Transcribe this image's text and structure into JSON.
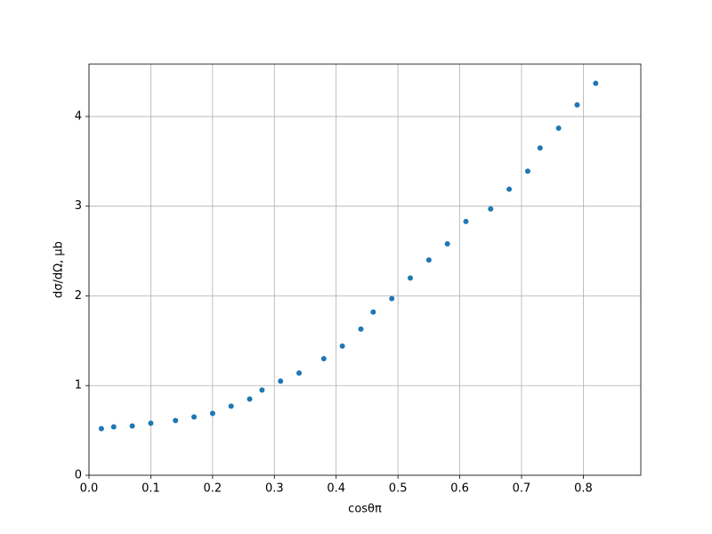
{
  "chart_data": {
    "type": "scatter",
    "xlabel": "cosθπ",
    "ylabel": "dσ/dΩ, μb",
    "x": [
      0.02,
      0.04,
      0.07,
      0.1,
      0.14,
      0.17,
      0.2,
      0.23,
      0.26,
      0.28,
      0.31,
      0.34,
      0.38,
      0.41,
      0.44,
      0.46,
      0.49,
      0.52,
      0.55,
      0.58,
      0.61,
      0.65,
      0.68,
      0.71,
      0.73,
      0.76,
      0.79,
      0.82
    ],
    "series": [
      {
        "color": "#1f77b4",
        "values": [
          0.52,
          0.54,
          0.55,
          0.58,
          0.61,
          0.65,
          0.69,
          0.77,
          0.85,
          0.95,
          1.05,
          1.14,
          1.3,
          1.44,
          1.63,
          1.82,
          1.97,
          2.2,
          2.4,
          2.58,
          2.83,
          2.97,
          3.19,
          3.39,
          3.65,
          3.87,
          4.13,
          4.37
        ]
      }
    ],
    "xlim": [
      0,
      0.893
    ],
    "ylim": [
      0,
      4.585
    ],
    "xticks": [
      {
        "value": 0,
        "label": "0.0"
      },
      {
        "value": 0.1,
        "label": "0.1"
      },
      {
        "value": 0.2,
        "label": "0.2"
      },
      {
        "value": 0.3,
        "label": "0.3"
      },
      {
        "value": 0.4,
        "label": "0.4"
      },
      {
        "value": 0.5,
        "label": "0.5"
      },
      {
        "value": 0.6,
        "label": "0.6"
      },
      {
        "value": 0.7,
        "label": "0.7"
      },
      {
        "value": 0.8,
        "label": "0.8"
      }
    ],
    "yticks": [
      0,
      1,
      2,
      3,
      4
    ],
    "grid": true
  }
}
